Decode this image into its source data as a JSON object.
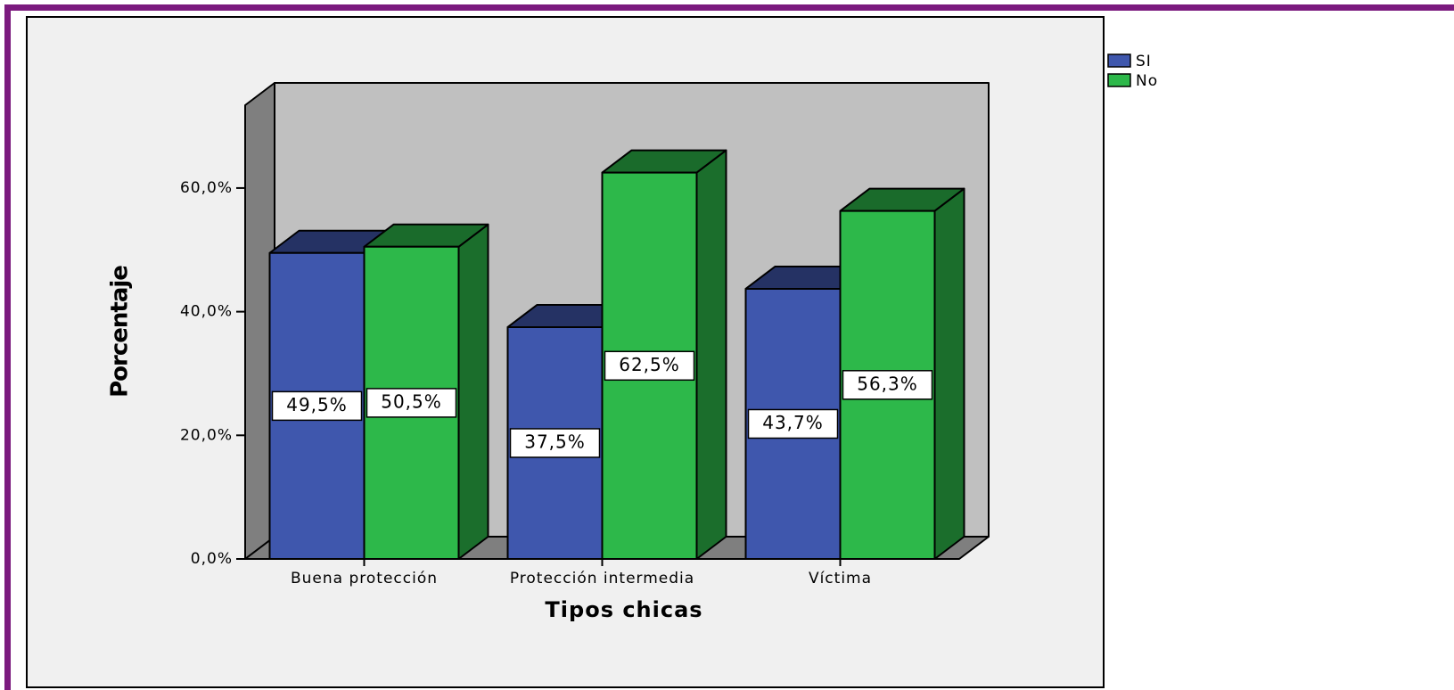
{
  "chart_data": {
    "type": "bar3d",
    "x_label": "Tipos chicas",
    "y_label": "Porcentaje",
    "categories": [
      "Buena protección",
      "Protección intermedia",
      "Víctima"
    ],
    "series": [
      {
        "name": "SI",
        "color": "#3f57ad",
        "values": [
          49.5,
          37.5,
          43.7
        ],
        "value_labels": [
          "49,5%",
          "37,5%",
          "43,7%"
        ]
      },
      {
        "name": "No",
        "color": "#2db84a",
        "values": [
          50.5,
          62.5,
          56.3
        ],
        "value_labels": [
          "50,5%",
          "62,5%",
          "56,3%"
        ]
      }
    ],
    "ylim": [
      0,
      73.4
    ],
    "yticks": [
      {
        "value": 0,
        "label": "0,0%"
      },
      {
        "value": 20,
        "label": "20,0%"
      },
      {
        "value": 40,
        "label": "40,0%"
      },
      {
        "value": 60,
        "label": "60,0%"
      }
    ],
    "legend": "top-right"
  }
}
